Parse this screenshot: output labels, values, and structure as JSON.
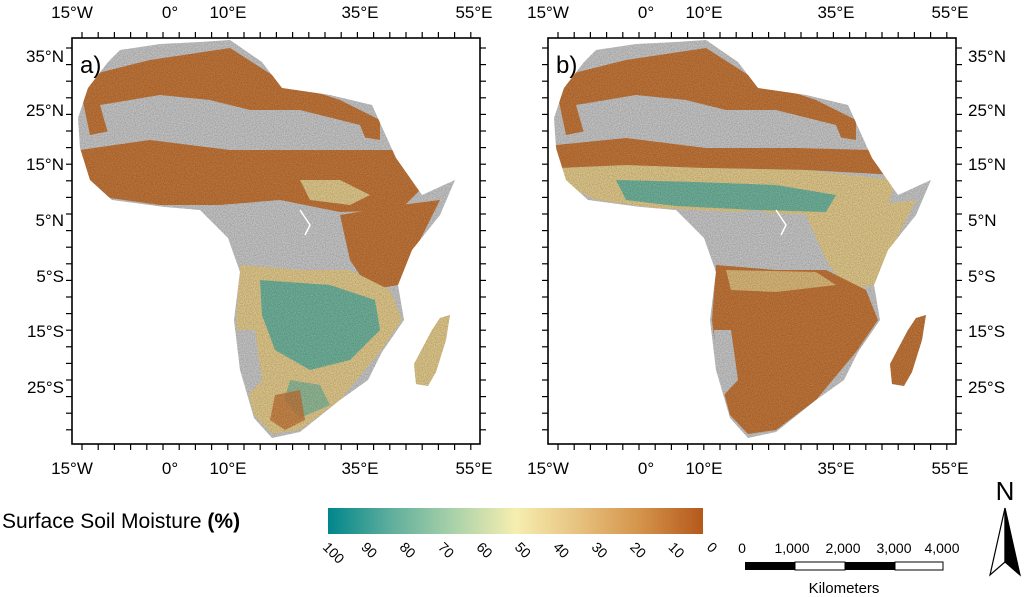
{
  "panels": [
    {
      "label": "a)",
      "top_lon_labels": [
        "15°W",
        "0°",
        "10°E",
        "35°E",
        "55°E"
      ],
      "bottom_lon_labels": [
        "15°W",
        "0°",
        "10°E",
        "35°E",
        "55°E"
      ],
      "lat_labels": [
        "35°N",
        "25°N",
        "15°N",
        "5°N",
        "5°S",
        "15°S",
        "25°S"
      ],
      "lat_side": "left"
    },
    {
      "label": "b)",
      "top_lon_labels": [
        "15°W",
        "0°",
        "10°E",
        "35°E",
        "55°E"
      ],
      "bottom_lon_labels": [
        "15°W",
        "0°",
        "10°E",
        "35°E",
        "55°E"
      ],
      "lat_labels": [
        "35°N",
        "25°N",
        "15°N",
        "5°N",
        "5°S",
        "15°S",
        "25°S"
      ],
      "lat_side": "right"
    }
  ],
  "legend": {
    "title_text": "Surface Soil Moisture ",
    "title_unit": "(%)",
    "ticks": [
      "100",
      "90",
      "80",
      "70",
      "60",
      "50",
      "40",
      "30",
      "20",
      "10",
      "0"
    ],
    "colors": [
      "#00868b",
      "#5eae9c",
      "#a9d1a9",
      "#f6eeb0",
      "#e7c27f",
      "#d4934a",
      "#b5581c"
    ]
  },
  "scalebar": {
    "labels": [
      "0",
      "1,000",
      "2,000",
      "3,000",
      "4,000"
    ],
    "unit": "Kilometers"
  },
  "north_arrow": {
    "label": "N"
  },
  "map_colors": {
    "no_data": "#cdcdcd",
    "dry": "#c8793a",
    "moderate": "#e8cf8f",
    "wet": "#73b8a0"
  }
}
